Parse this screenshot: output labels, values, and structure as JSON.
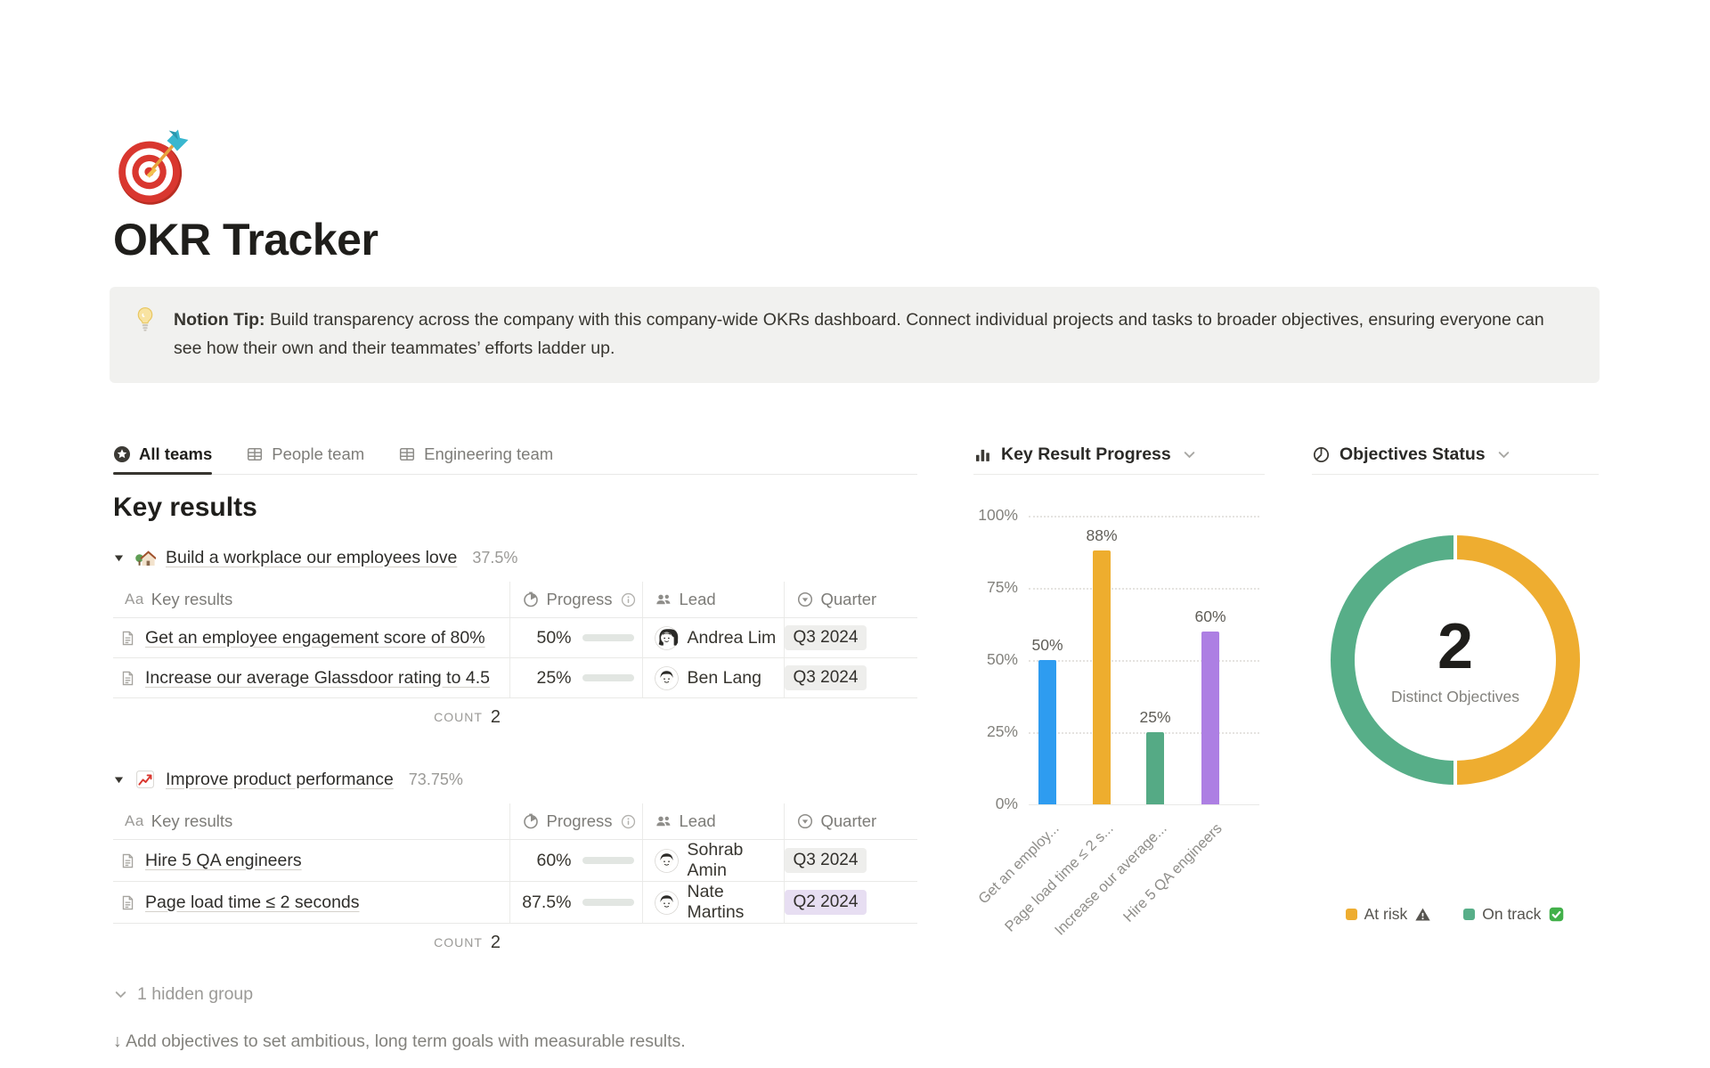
{
  "page": {
    "icon_name": "dart-target-emoji",
    "title": "OKR Tracker",
    "callout": {
      "icon_name": "light-bulb-emoji",
      "label": "Notion Tip:",
      "text": "Build transparency across the company with this company-wide OKRs dashboard. Connect individual projects and tasks to broader objectives, ensuring everyone can see how their own and their teammates’ efforts ladder up."
    },
    "footer": "↓ Add objectives to set ambitious, long term goals with measurable results."
  },
  "tabs": [
    {
      "label": "All teams",
      "icon": "star-circle-icon",
      "active": true
    },
    {
      "label": "People team",
      "icon": "table-icon",
      "active": false
    },
    {
      "label": "Engineering team",
      "icon": "table-icon",
      "active": false
    }
  ],
  "key_results": {
    "heading": "Key results",
    "columns": [
      {
        "label": "Key results",
        "icon": "text-Aa-icon"
      },
      {
        "label": "Progress",
        "icon": "timer-icon",
        "suffix_icon": "info-icon"
      },
      {
        "label": "Lead",
        "icon": "people-icon"
      },
      {
        "label": "Quarter",
        "icon": "select-circle-icon"
      }
    ],
    "groups": [
      {
        "emoji": "house-with-garden-emoji",
        "title": "Build a workplace our employees love",
        "percent": "37.5%",
        "rows": [
          {
            "title": "Get an employee engagement score of 80%",
            "progress_label": "50%",
            "progress_value": 50,
            "lead": "Andrea Lim",
            "avatar": "female",
            "quarter": "Q3 2024",
            "quarter_color": "gray"
          },
          {
            "title": "Increase our average Glassdoor rating to 4.5",
            "progress_label": "25%",
            "progress_value": 25,
            "lead": "Ben Lang",
            "avatar": "male",
            "quarter": "Q3 2024",
            "quarter_color": "gray"
          }
        ],
        "count_label": "COUNT",
        "count": "2"
      },
      {
        "emoji": "chart-increasing-emoji",
        "title": "Improve product performance",
        "percent": "73.75%",
        "rows": [
          {
            "title": "Hire 5 QA engineers",
            "progress_label": "60%",
            "progress_value": 60,
            "lead": "Sohrab Amin",
            "avatar": "male",
            "quarter": "Q3 2024",
            "quarter_color": "gray"
          },
          {
            "title": "Page load time ≤ 2 seconds",
            "progress_label": "87.5%",
            "progress_value": 87.5,
            "lead": "Nate Martins",
            "avatar": "male",
            "quarter": "Q2 2024",
            "quarter_color": "purple"
          }
        ],
        "count_label": "COUNT",
        "count": "2"
      }
    ],
    "hidden_group_label": "1 hidden group"
  },
  "chart_data": [
    {
      "type": "bar",
      "title": "Key Result Progress",
      "title_icon": "bar-chart-icon",
      "categories": [
        "Get an employ...",
        "Page load time ≤ 2 s...",
        "Increase our average...",
        "Hire 5 QA engineers"
      ],
      "values": [
        50,
        88,
        25,
        60
      ],
      "value_labels": [
        "50%",
        "88%",
        "25%",
        "60%"
      ],
      "bar_colors": [
        "#2e9cf0",
        "#eead2e",
        "#55aa85",
        "#ad7fe3"
      ],
      "yticks": [
        "100%",
        "75%",
        "50%",
        "25%",
        "0%"
      ],
      "ylim": [
        0,
        100
      ],
      "grid": "dotted-horizontal",
      "legend_position": "none"
    },
    {
      "type": "pie",
      "title": "Objectives Status",
      "title_icon": "pie-chart-icon",
      "center_value": "2",
      "center_label": "Distinct Objectives",
      "slices": [
        {
          "label": "At risk",
          "value": 1,
          "color": "#eead30",
          "suffix_icon": "warning-icon"
        },
        {
          "label": "On track",
          "value": 1,
          "color": "#57ae88",
          "suffix_icon": "check-icon"
        }
      ],
      "legend_position": "bottom"
    }
  ],
  "colors": {
    "progress_fill": "#5d8a70",
    "progress_track": "#e2e6e2",
    "chip_gray": "#eeeeec",
    "chip_purple": "#e7def2",
    "callout_bg": "#f1f1ef",
    "active_tab_underline": "#37352f"
  }
}
